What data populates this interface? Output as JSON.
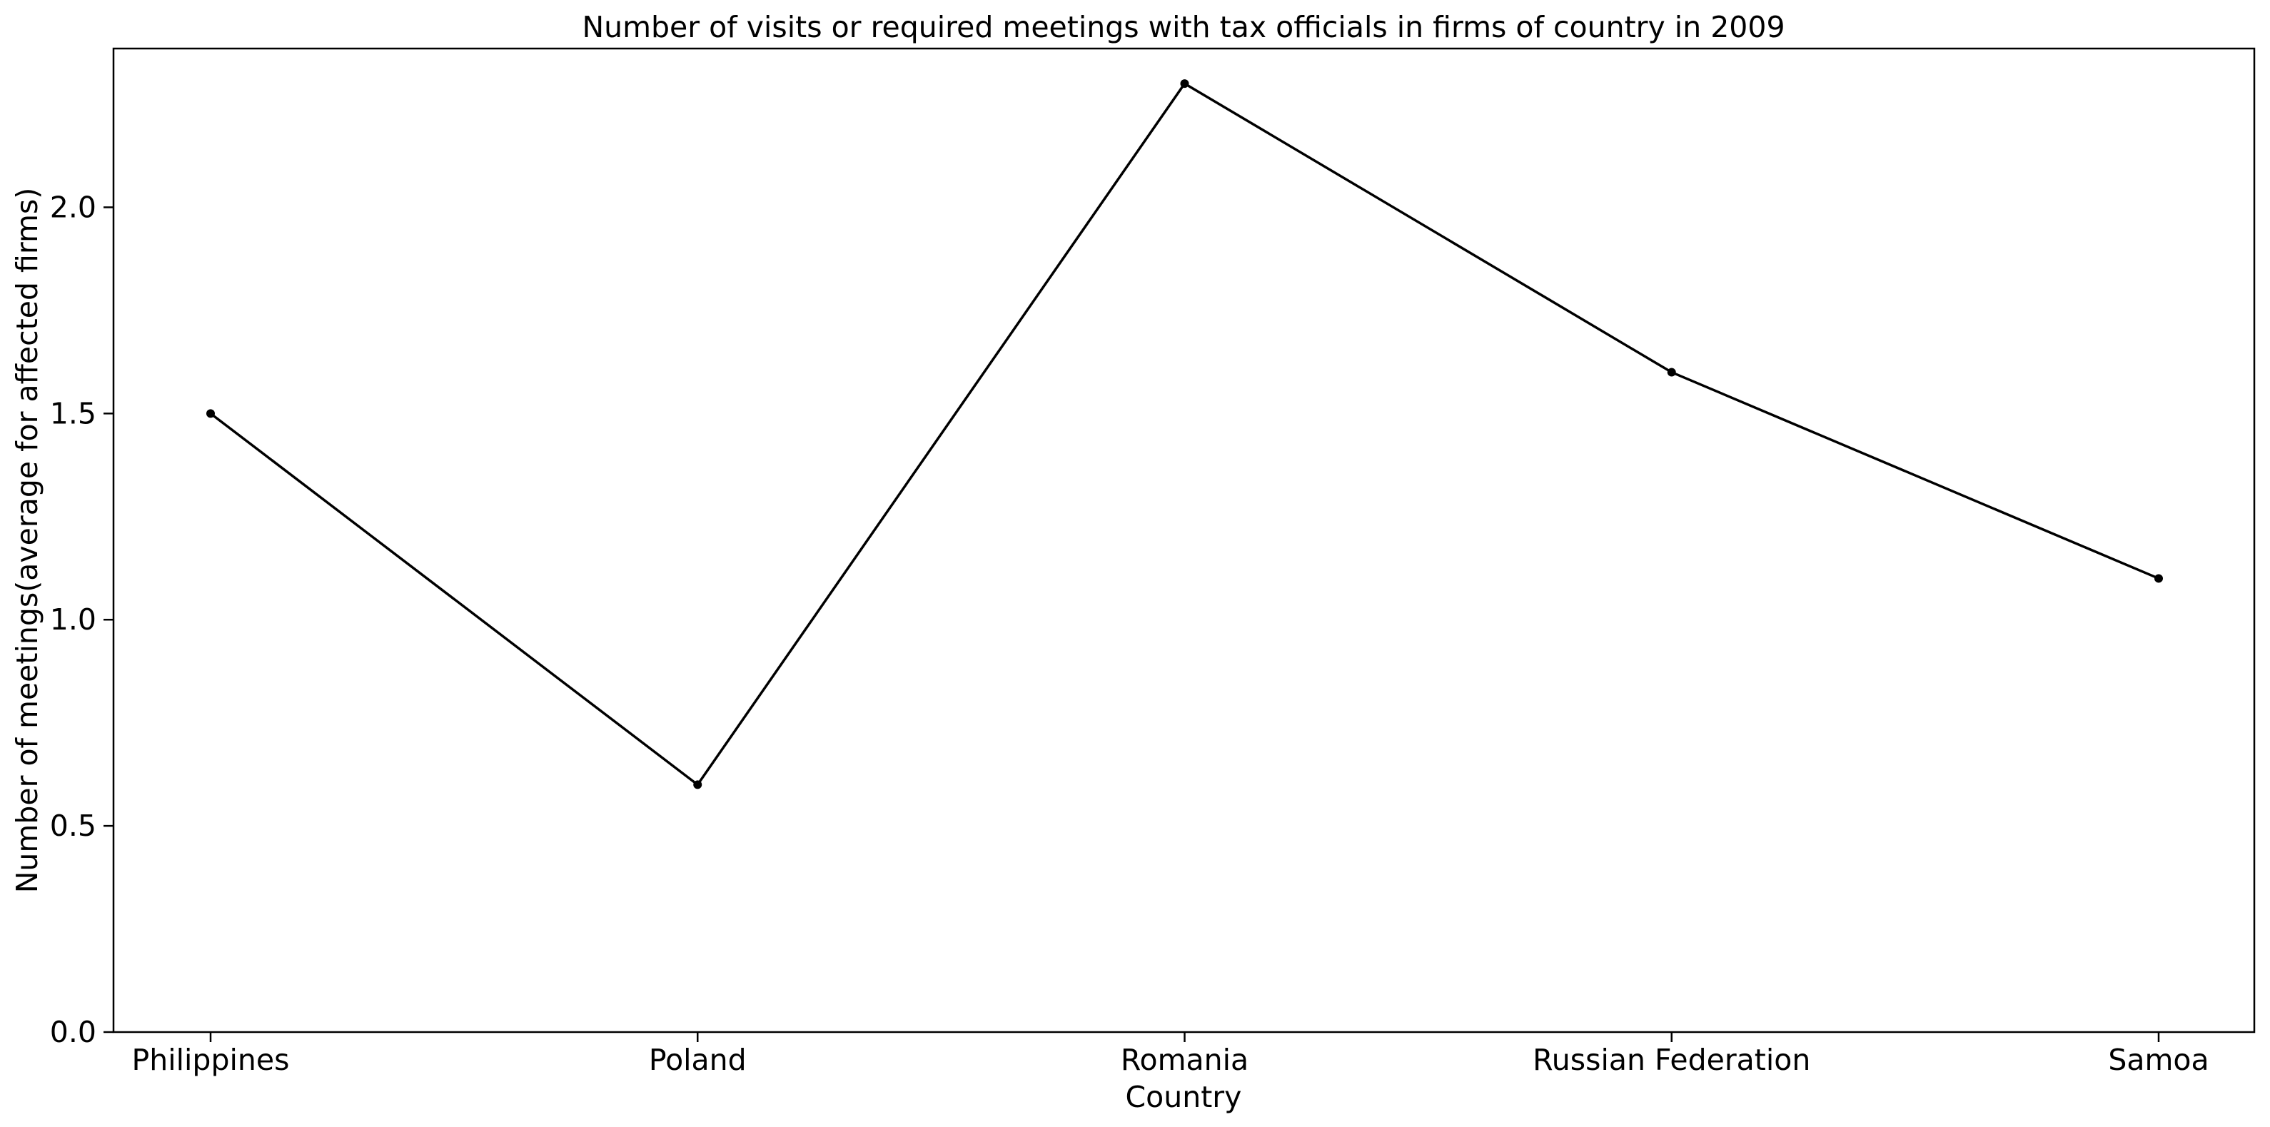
{
  "colors": {
    "line": "#000000",
    "background": "#ffffff"
  },
  "chart_data": {
    "type": "line",
    "title": "Number of visits or required meetings with tax officials in firms of country in 2009",
    "xlabel": "Country",
    "ylabel": "Number of meetings(average for affected firms)",
    "categories": [
      "Philippines",
      "Poland",
      "Romania",
      "Russian Federation",
      "Samoa"
    ],
    "series": [
      {
        "values": [
          1.5,
          0.6,
          2.3,
          1.6,
          1.1
        ]
      }
    ],
    "ylim": [
      0,
      2.385
    ],
    "yticks": [
      0.0,
      0.5,
      1.0,
      1.5,
      2.0
    ],
    "ytick_labels": [
      "0.0",
      "0.5",
      "1.0",
      "1.5",
      "2.0"
    ],
    "grid": false,
    "markers": true
  }
}
